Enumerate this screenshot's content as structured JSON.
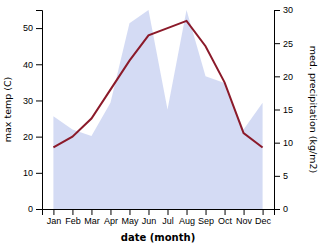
{
  "chart_data": {
    "type": "line",
    "categories": [
      "Jan",
      "Feb",
      "Mar",
      "Apr",
      "May",
      "Jun",
      "Jul",
      "Aug",
      "Sep",
      "Oct",
      "Nov",
      "Dec"
    ],
    "xlabel": "date (month)",
    "ylabel": "max temp (C)",
    "y2label": "med. precipitation (kg/m2)",
    "ylim": [
      0,
      55
    ],
    "yticks": [
      0,
      10,
      20,
      30,
      40,
      50
    ],
    "y2lim": [
      0,
      30
    ],
    "y2ticks": [
      0,
      5,
      10,
      15,
      20,
      25,
      30
    ],
    "series": [
      {
        "type": "area",
        "axis": "y2",
        "color": "#c5cff0",
        "values": [
          14,
          12,
          11,
          16,
          28,
          30,
          15,
          30,
          20,
          19,
          12,
          16
        ]
      },
      {
        "type": "line",
        "color": "#8b1a2a",
        "values": [
          17,
          20,
          25,
          33,
          41,
          48,
          50,
          52,
          45,
          35,
          21,
          17
        ]
      }
    ]
  }
}
